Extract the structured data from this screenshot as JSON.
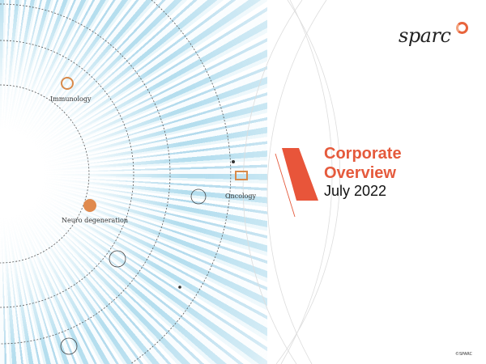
{
  "logo": {
    "text": "sparc",
    "accent": "#e8643c"
  },
  "title": {
    "line1": "Corporate",
    "line2": "Overview",
    "date": "July 2022",
    "accent": "#e55a3c"
  },
  "areas": [
    {
      "label": "Immunology",
      "icon": "immunology-icon"
    },
    {
      "label": "Neuro degeneration",
      "icon": "neuro-icon"
    },
    {
      "label": "Oncology",
      "icon": "oncology-icon"
    }
  ],
  "copyright": "©SPARC"
}
